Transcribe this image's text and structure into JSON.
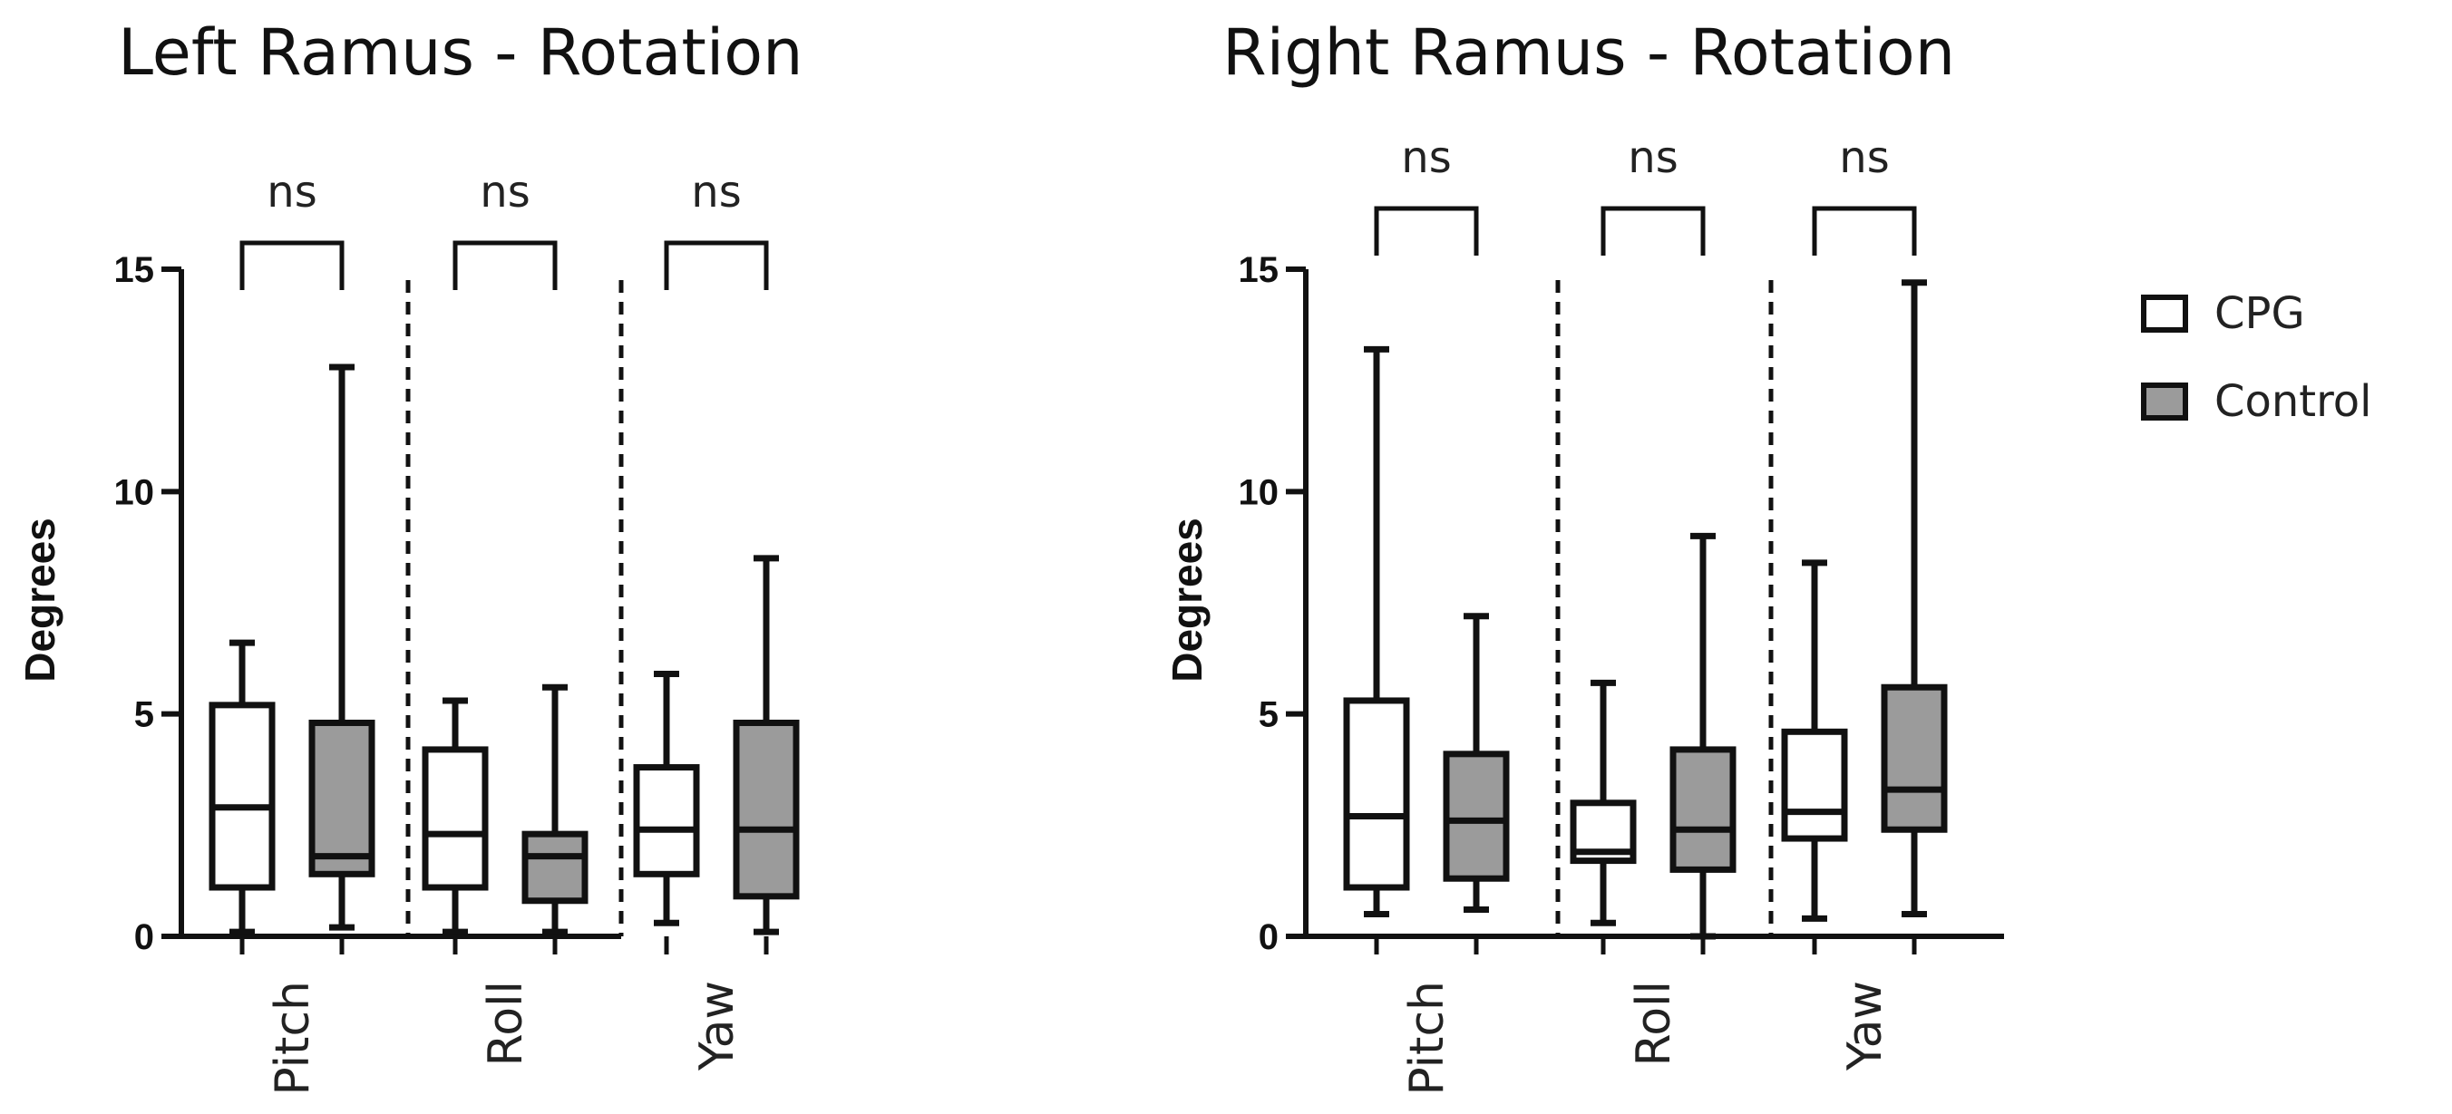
{
  "chart_data": [
    {
      "type": "box",
      "title": "Left Ramus - Rotation",
      "ylabel": "Degrees",
      "ylim": [
        0,
        15
      ],
      "yticks": [
        "0",
        "5",
        "10",
        "15"
      ],
      "categories": [
        "Pitch",
        "Roll",
        "Yaw"
      ],
      "significance": [
        "ns",
        "ns",
        "ns"
      ],
      "series": [
        {
          "name": "CPG",
          "color": "#ffffff",
          "boxes": [
            {
              "min": 0.1,
              "q1": 1.1,
              "median": 2.9,
              "q3": 5.2,
              "max": 6.6
            },
            {
              "min": 0.1,
              "q1": 1.1,
              "median": 2.3,
              "q3": 4.2,
              "max": 5.3
            },
            {
              "min": 0.3,
              "q1": 1.4,
              "median": 2.4,
              "q3": 3.8,
              "max": 5.9
            }
          ]
        },
        {
          "name": "Control",
          "color": "#9b9b9b",
          "boxes": [
            {
              "min": 0.2,
              "q1": 1.4,
              "median": 1.8,
              "q3": 4.8,
              "max": 12.8
            },
            {
              "min": 0.1,
              "q1": 0.8,
              "median": 1.8,
              "q3": 2.3,
              "max": 5.6
            },
            {
              "min": 0.1,
              "q1": 0.9,
              "median": 2.4,
              "q3": 4.8,
              "max": 8.5
            }
          ]
        }
      ]
    },
    {
      "type": "box",
      "title": "Right Ramus - Rotation",
      "ylabel": "Degrees",
      "ylim": [
        0,
        15
      ],
      "yticks": [
        "0",
        "5",
        "10",
        "15"
      ],
      "categories": [
        "Pitch",
        "Roll",
        "Yaw"
      ],
      "significance": [
        "ns",
        "ns",
        "ns"
      ],
      "series": [
        {
          "name": "CPG",
          "color": "#ffffff",
          "boxes": [
            {
              "min": 0.5,
              "q1": 1.1,
              "median": 2.7,
              "q3": 5.3,
              "max": 13.2
            },
            {
              "min": 0.3,
              "q1": 1.7,
              "median": 1.9,
              "q3": 3.0,
              "max": 5.7
            },
            {
              "min": 0.4,
              "q1": 2.2,
              "median": 2.8,
              "q3": 4.6,
              "max": 8.4
            }
          ]
        },
        {
          "name": "Control",
          "color": "#9b9b9b",
          "boxes": [
            {
              "min": 0.6,
              "q1": 1.3,
              "median": 2.6,
              "q3": 4.1,
              "max": 7.2
            },
            {
              "min": 0.0,
              "q1": 1.5,
              "median": 2.4,
              "q3": 4.2,
              "max": 9.0
            },
            {
              "min": 0.5,
              "q1": 2.4,
              "median": 3.3,
              "q3": 5.6,
              "max": 14.7
            }
          ]
        }
      ]
    }
  ],
  "legend": {
    "placement": "right",
    "items": [
      {
        "label": "CPG",
        "color": "#ffffff"
      },
      {
        "label": "Control",
        "color": "#9b9b9b"
      }
    ]
  }
}
